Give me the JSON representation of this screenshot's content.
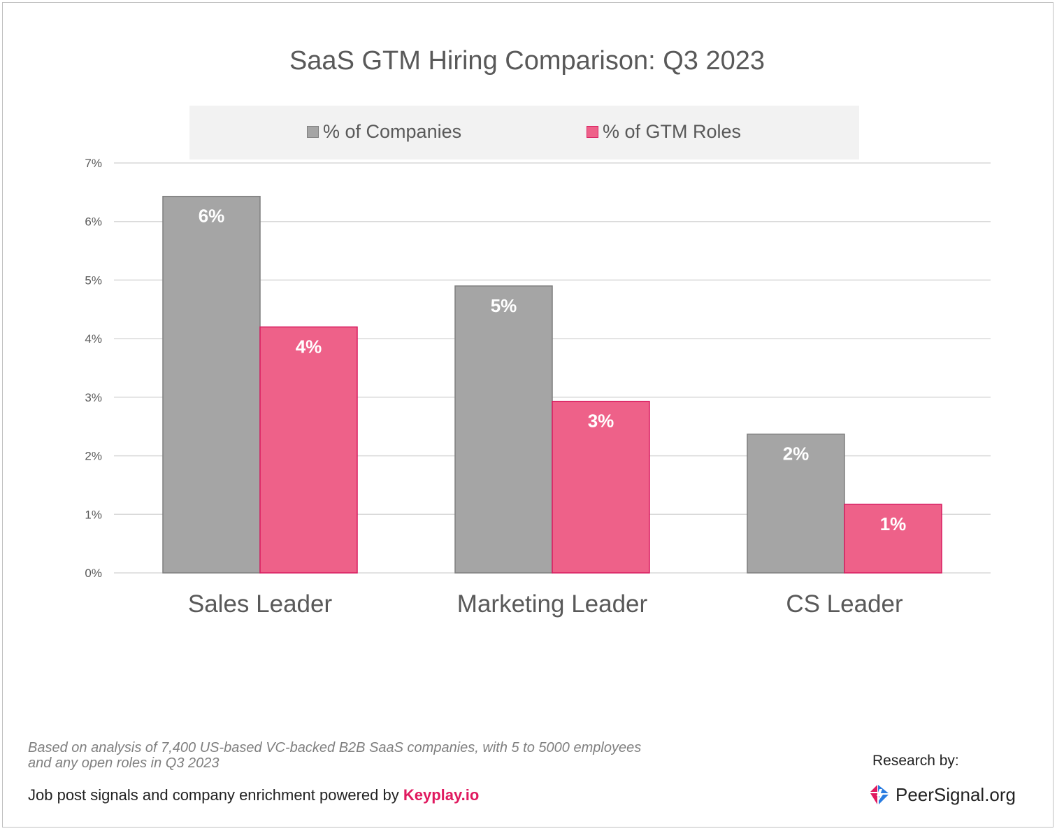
{
  "chart_data": {
    "type": "bar",
    "title": "SaaS GTM Hiring Comparison: Q3 2023",
    "categories": [
      "Sales Leader",
      "Marketing Leader",
      "CS Leader"
    ],
    "series": [
      {
        "name": "% of Companies",
        "values": [
          6.43,
          4.9,
          2.37
        ],
        "labels": [
          "6%",
          "5%",
          "2%"
        ],
        "color": "#a5a5a5",
        "border": "#7f7f7f"
      },
      {
        "name": "% of GTM Roles",
        "values": [
          4.2,
          2.93,
          1.17
        ],
        "labels": [
          "4%",
          "3%",
          "1%"
        ],
        "color": "#ee6189",
        "border": "#d81b5f"
      }
    ],
    "ylim": [
      0,
      7
    ],
    "yticks": [
      "0%",
      "1%",
      "2%",
      "3%",
      "4%",
      "5%",
      "6%",
      "7%"
    ],
    "grid": true,
    "legend_position": "top"
  },
  "footnote": "Based on analysis of 7,400 US-based VC-backed B2B SaaS companies, with 5 to 5000 employees and any open roles in Q3 2023",
  "powered_by": {
    "text": "Job post signals and company enrichment powered by ",
    "brand": "Keyplay.io"
  },
  "research_by": "Research by:",
  "logo_text": "PeerSignal.org"
}
